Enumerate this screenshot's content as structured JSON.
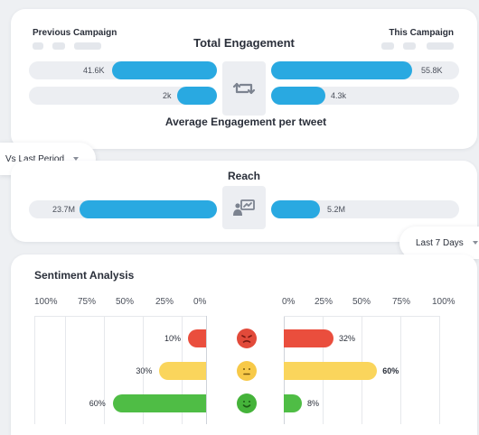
{
  "engagement": {
    "previous_label": "Previous Campaign",
    "this_label": "This Campaign",
    "title": "Total Engagement",
    "total_prev": "41.6K",
    "total_this": "55.8K",
    "avg_prev": "2k",
    "avg_this": "4.3k",
    "avg_title": "Average Engagement per tweet",
    "icon": "retweet-icon"
  },
  "compare_select": {
    "value": "Vs Last Period"
  },
  "reach": {
    "title": "Reach",
    "prev": "23.7M",
    "this": "5.2M",
    "icon": "presentation-icon"
  },
  "period_select": {
    "value": "Last 7 Days"
  },
  "sentiment": {
    "title": "Sentiment Analysis",
    "left_ticks": [
      "100%",
      "75%",
      "50%",
      "25%",
      "0%"
    ],
    "right_ticks": [
      "0%",
      "25%",
      "50%",
      "75%",
      "100%"
    ],
    "rows": [
      {
        "icon": "angry-face-icon",
        "color": "#ea4e3d",
        "prev": "10%",
        "this": "32%"
      },
      {
        "icon": "neutral-face-icon",
        "color": "#fad55c",
        "prev": "30%",
        "this": "60%"
      },
      {
        "icon": "happy-face-icon",
        "color": "#4fbd45",
        "prev": "60%",
        "this": "8%"
      }
    ]
  },
  "chart_data": {
    "type": "bar",
    "title": "Sentiment Analysis",
    "categories": [
      "Negative",
      "Neutral",
      "Positive"
    ],
    "series": [
      {
        "name": "Previous Campaign",
        "values": [
          10,
          30,
          60
        ]
      },
      {
        "name": "This Campaign",
        "values": [
          32,
          60,
          8
        ]
      }
    ],
    "xlim": [
      0,
      100
    ]
  }
}
